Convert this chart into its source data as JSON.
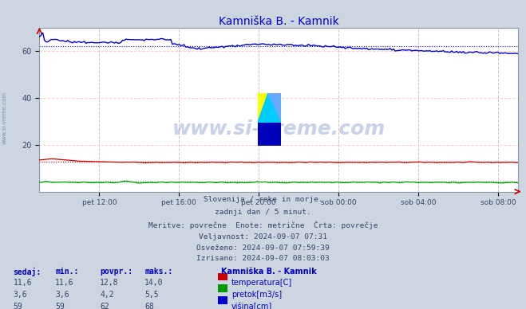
{
  "title": "Kamniška B. - Kamnik",
  "title_color": "#0000cc",
  "bg_color": "#ccd5e0",
  "plot_bg_color": "#ffffff",
  "x_ticks": [
    36,
    84,
    132,
    180,
    228,
    276
  ],
  "x_tick_labels": [
    "pet 12:00",
    "pet 16:00",
    "pet 20:00",
    "sob 00:00",
    "sob 04:00",
    "sob 08:00"
  ],
  "ylim": [
    0,
    70
  ],
  "y_ticks": [
    20,
    40,
    60
  ],
  "temp_color": "#cc0000",
  "pretok_color": "#009900",
  "visina_color": "#0000cc",
  "temp_avg": 12.8,
  "pretok_avg": 4.2,
  "visina_avg": 62,
  "info_lines": [
    "Slovenija / reke in morje.",
    "zadnji dan / 5 minut.",
    "Meritve: povrečne  Enote: metrične  Črta: povrečje",
    "Veljavnost: 2024-09-07 07:31",
    "Osveženo: 2024-09-07 07:59:39",
    "Izrisano: 2024-09-07 08:03:03"
  ],
  "table_headers": [
    "sedaj:",
    "min.:",
    "povpr.:",
    "maks.:"
  ],
  "table_rows": [
    [
      "11,6",
      "11,6",
      "12,8",
      "14,0"
    ],
    [
      "3,6",
      "3,6",
      "4,2",
      "5,5"
    ],
    [
      "59",
      "59",
      "62",
      "68"
    ]
  ],
  "legend_labels": [
    "temperatura[C]",
    "pretok[m3/s]",
    "višina[cm]"
  ],
  "legend_colors": [
    "#cc0000",
    "#009900",
    "#0000cc"
  ],
  "station_name": "Kamniška B. - Kamnik",
  "watermark_text": "www.si-vreme.com",
  "side_text": "www.si-vreme.com",
  "grid_v_color": "#ddbbbb",
  "grid_h_color": "#ffcccc"
}
